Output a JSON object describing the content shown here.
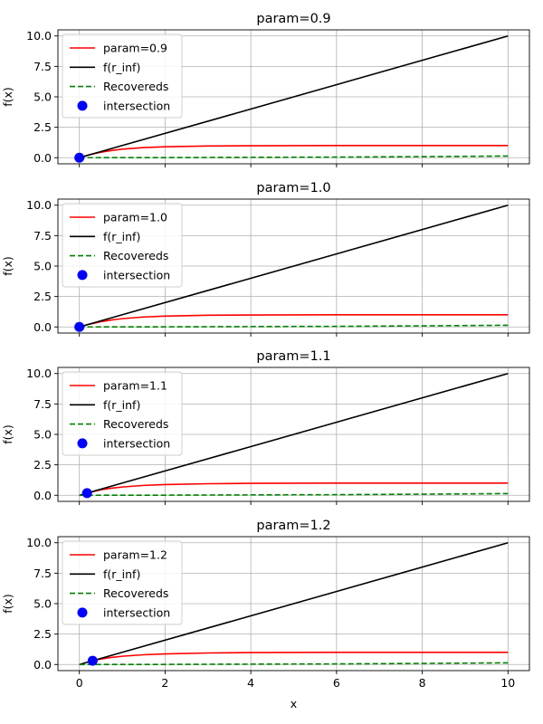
{
  "chart_data": [
    {
      "type": "line",
      "title": "param=0.9",
      "ylabel": "f(x)",
      "xlabel": "",
      "xlim": [
        -0.5,
        10.5
      ],
      "ylim": [
        -0.5,
        10.5
      ],
      "xticks": [
        0,
        2,
        4,
        6,
        8,
        10
      ],
      "yticks": [
        0.0,
        2.5,
        5.0,
        7.5,
        10.0
      ],
      "xtick_labels": [
        "",
        "",
        "",
        "",
        "",
        ""
      ],
      "ytick_labels": [
        "0.0",
        "2.5",
        "5.0",
        "7.5",
        "10.0"
      ],
      "grid": true,
      "legend_position": "upper-left",
      "param": 0.9,
      "series": [
        {
          "name": "param=0.9",
          "color": "#ff0000",
          "style": "solid",
          "x": [
            0,
            0.25,
            0.5,
            0.75,
            1,
            1.5,
            2,
            3,
            4,
            5,
            6,
            8,
            10
          ],
          "y": [
            0.0,
            0.26,
            0.45,
            0.59,
            0.7,
            0.83,
            0.9,
            0.96,
            0.98,
            0.99,
            1.0,
            1.0,
            1.0
          ]
        },
        {
          "name": "f(r_inf)",
          "color": "#000000",
          "style": "solid",
          "x": [
            0,
            10
          ],
          "y": [
            0,
            10
          ]
        },
        {
          "name": "Recovereds",
          "color": "#008000",
          "style": "dashed",
          "x": [
            0,
            2,
            4,
            6,
            8,
            10
          ],
          "y": [
            0.0,
            0.01,
            0.03,
            0.05,
            0.09,
            0.14
          ]
        }
      ],
      "intersection": {
        "name": "intersection",
        "color": "#0000ff",
        "x": 0.0,
        "y": 0.0
      }
    },
    {
      "type": "line",
      "title": "param=1.0",
      "ylabel": "f(x)",
      "xlabel": "",
      "xlim": [
        -0.5,
        10.5
      ],
      "ylim": [
        -0.5,
        10.5
      ],
      "xticks": [
        0,
        2,
        4,
        6,
        8,
        10
      ],
      "yticks": [
        0.0,
        2.5,
        5.0,
        7.5,
        10.0
      ],
      "xtick_labels": [
        "",
        "",
        "",
        "",
        "",
        ""
      ],
      "ytick_labels": [
        "0.0",
        "2.5",
        "5.0",
        "7.5",
        "10.0"
      ],
      "grid": true,
      "legend_position": "upper-left",
      "param": 1.0,
      "series": [
        {
          "name": "param=1.0",
          "color": "#ff0000",
          "style": "solid",
          "x": [
            0,
            0.25,
            0.5,
            0.75,
            1,
            1.5,
            2,
            3,
            4,
            5,
            6,
            8,
            10
          ],
          "y": [
            0.0,
            0.24,
            0.43,
            0.57,
            0.68,
            0.82,
            0.89,
            0.96,
            0.98,
            0.99,
            1.0,
            1.0,
            1.0
          ]
        },
        {
          "name": "f(r_inf)",
          "color": "#000000",
          "style": "solid",
          "x": [
            0,
            10
          ],
          "y": [
            0,
            10
          ]
        },
        {
          "name": "Recovereds",
          "color": "#008000",
          "style": "dashed",
          "x": [
            0,
            2,
            4,
            6,
            8,
            10
          ],
          "y": [
            0.0,
            0.01,
            0.03,
            0.05,
            0.09,
            0.14
          ]
        }
      ],
      "intersection": {
        "name": "intersection",
        "color": "#0000ff",
        "x": 0.0,
        "y": 0.0
      }
    },
    {
      "type": "line",
      "title": "param=1.1",
      "ylabel": "f(x)",
      "xlabel": "",
      "xlim": [
        -0.5,
        10.5
      ],
      "ylim": [
        -0.5,
        10.5
      ],
      "xticks": [
        0,
        2,
        4,
        6,
        8,
        10
      ],
      "yticks": [
        0.0,
        2.5,
        5.0,
        7.5,
        10.0
      ],
      "xtick_labels": [
        "",
        "",
        "",
        "",
        "",
        ""
      ],
      "ytick_labels": [
        "0.0",
        "2.5",
        "5.0",
        "7.5",
        "10.0"
      ],
      "grid": true,
      "legend_position": "upper-left",
      "param": 1.1,
      "series": [
        {
          "name": "param=1.1",
          "color": "#ff0000",
          "style": "solid",
          "x": [
            0.18,
            0.25,
            0.5,
            0.75,
            1,
            1.5,
            2,
            3,
            4,
            5,
            6,
            8,
            10
          ],
          "y": [
            0.18,
            0.25,
            0.45,
            0.58,
            0.68,
            0.81,
            0.88,
            0.95,
            0.98,
            0.99,
            1.0,
            1.0,
            1.0
          ]
        },
        {
          "name": "f(r_inf)",
          "color": "#000000",
          "style": "solid",
          "x": [
            0,
            10
          ],
          "y": [
            0,
            10
          ]
        },
        {
          "name": "Recovereds",
          "color": "#008000",
          "style": "dashed",
          "x": [
            0,
            2,
            4,
            6,
            8,
            10
          ],
          "y": [
            0.0,
            0.01,
            0.03,
            0.05,
            0.09,
            0.14
          ]
        }
      ],
      "intersection": {
        "name": "intersection",
        "color": "#0000ff",
        "x": 0.18,
        "y": 0.18
      }
    },
    {
      "type": "line",
      "title": "param=1.2",
      "ylabel": "f(x)",
      "xlabel": "x",
      "xlim": [
        -0.5,
        10.5
      ],
      "ylim": [
        -0.5,
        10.5
      ],
      "xticks": [
        0,
        2,
        4,
        6,
        8,
        10
      ],
      "yticks": [
        0.0,
        2.5,
        5.0,
        7.5,
        10.0
      ],
      "xtick_labels": [
        "0",
        "2",
        "4",
        "6",
        "8",
        "10"
      ],
      "ytick_labels": [
        "0.0",
        "2.5",
        "5.0",
        "7.5",
        "10.0"
      ],
      "grid": true,
      "legend_position": "upper-left",
      "param": 1.2,
      "series": [
        {
          "name": "param=1.2",
          "color": "#ff0000",
          "style": "solid",
          "x": [
            0.31,
            0.5,
            0.75,
            1,
            1.5,
            2,
            3,
            4,
            5,
            6,
            8,
            10
          ],
          "y": [
            0.31,
            0.45,
            0.58,
            0.68,
            0.8,
            0.87,
            0.95,
            0.98,
            0.99,
            1.0,
            1.0,
            1.0
          ]
        },
        {
          "name": "f(r_inf)",
          "color": "#000000",
          "style": "solid",
          "x": [
            0,
            10
          ],
          "y": [
            0,
            10
          ]
        },
        {
          "name": "Recovereds",
          "color": "#008000",
          "style": "dashed",
          "x": [
            0,
            2,
            4,
            6,
            8,
            10
          ],
          "y": [
            0.0,
            0.01,
            0.03,
            0.05,
            0.09,
            0.14
          ]
        }
      ],
      "intersection": {
        "name": "intersection",
        "color": "#0000ff",
        "x": 0.31,
        "y": 0.31
      }
    }
  ]
}
